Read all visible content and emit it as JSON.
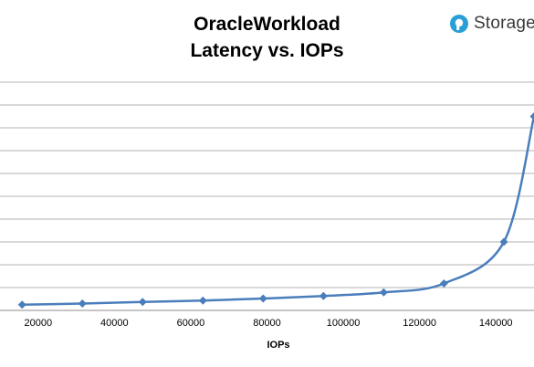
{
  "logo": {
    "text": "Storage",
    "icon": "storagereview-logo-icon",
    "color": "#2a9fd6"
  },
  "colors": {
    "series": "#4a7ebb",
    "grid": "#b3b3b3"
  },
  "chart_data": {
    "type": "line",
    "title": [
      "OracleWorkload",
      "Latency vs. IOPs"
    ],
    "xlabel": "IOPs",
    "ylabel": "",
    "xlim": [
      10000,
      150000
    ],
    "x_ticks": [
      20000,
      40000,
      60000,
      80000,
      100000,
      120000,
      140000
    ],
    "ylim": [
      0,
      10
    ],
    "gridlines_y": [
      1,
      2,
      3,
      4,
      5,
      6,
      7,
      8,
      9,
      10
    ],
    "grid": true,
    "legend": "none",
    "series": [
      {
        "x": [
          15800,
          31600,
          47400,
          63200,
          79000,
          94800,
          110600,
          126400,
          142100,
          150000
        ],
        "y": [
          0.25,
          0.3,
          0.37,
          0.43,
          0.52,
          0.63,
          0.79,
          1.18,
          3.0,
          8.5
        ],
        "marker": "diamond"
      }
    ]
  }
}
